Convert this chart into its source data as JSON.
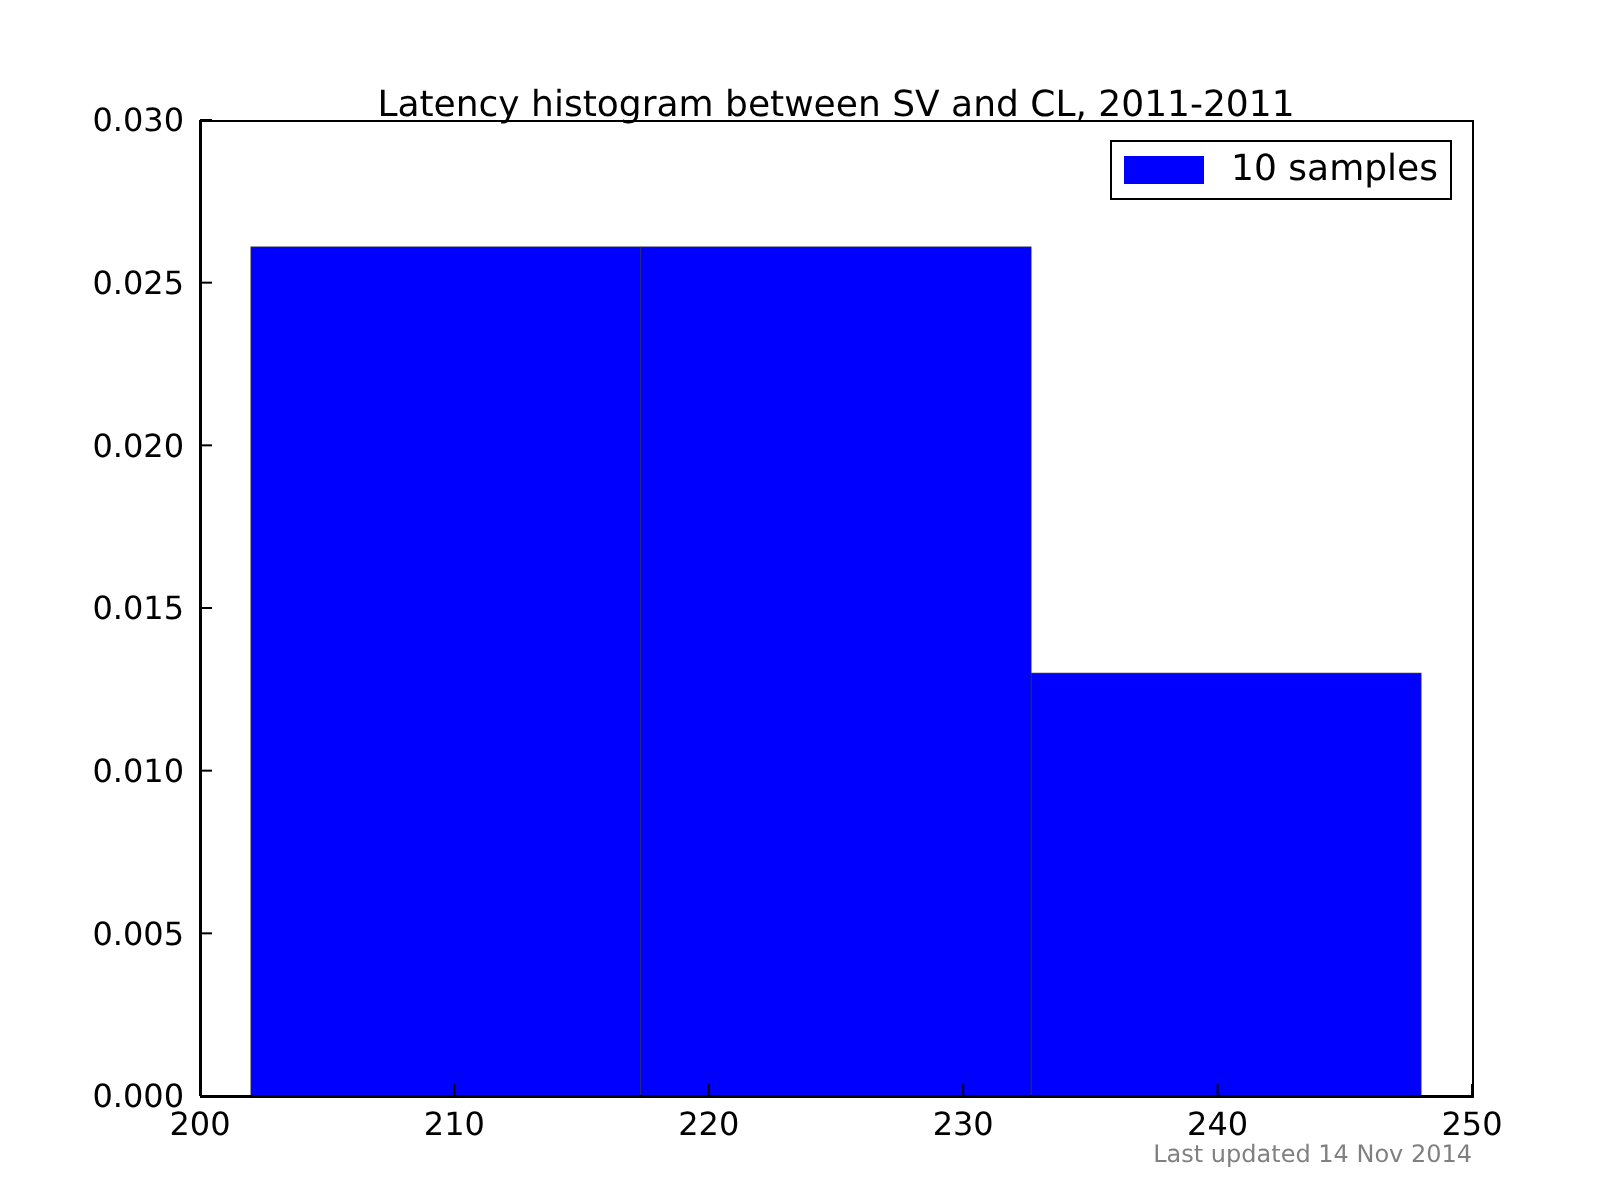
{
  "chart_data": {
    "type": "histogram",
    "title": "Latency histogram between SV and CL, 2011-2011",
    "bins": [
      202,
      217.33,
      232.67,
      248
    ],
    "series": [
      {
        "name": "10 samples",
        "color": "#0000ff",
        "values": [
          0.0261,
          0.0261,
          0.013
        ]
      }
    ],
    "xlim": [
      200,
      250
    ],
    "xticks": [
      200,
      210,
      220,
      230,
      240,
      250
    ],
    "ylim": [
      0,
      0.03
    ],
    "yticks": [
      {
        "value": 0,
        "label": "0.000"
      },
      {
        "value": 0.005,
        "label": "0.005"
      },
      {
        "value": 0.01,
        "label": "0.010"
      },
      {
        "value": 0.015,
        "label": "0.015"
      },
      {
        "value": 0.02,
        "label": "0.020"
      },
      {
        "value": 0.025,
        "label": "0.025"
      },
      {
        "value": 0.03,
        "label": "0.030"
      }
    ],
    "grid": false,
    "legend": "top right",
    "annotations": [
      "Last updated 14 Nov 2014"
    ]
  }
}
